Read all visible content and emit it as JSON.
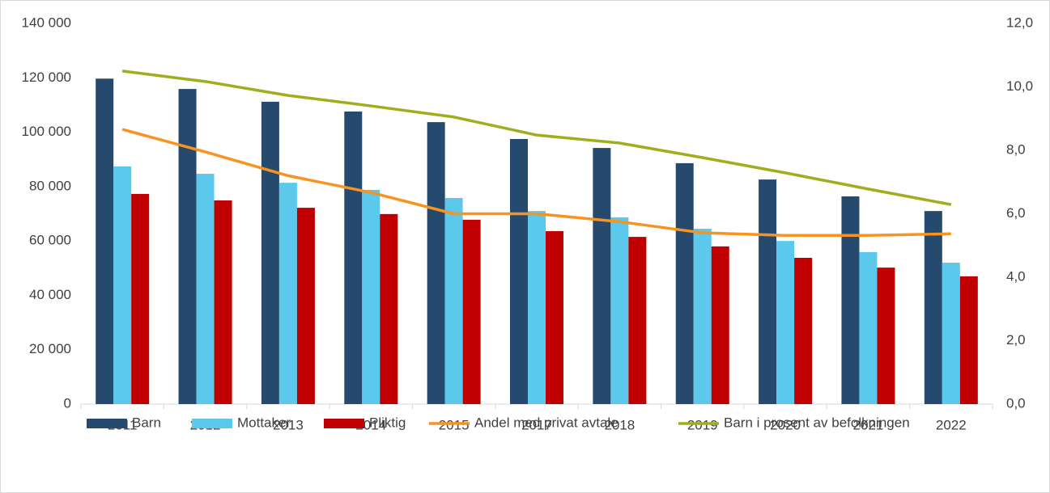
{
  "chart_data": {
    "type": "bar_line",
    "categories": [
      "2011",
      "2012",
      "2013",
      "2014",
      "2015",
      "2017",
      "2018",
      "2019",
      "2020",
      "2021",
      "2022"
    ],
    "series": [
      {
        "name": "Barn",
        "type": "bar",
        "color": "#264a6e",
        "values": [
          119700,
          115900,
          111200,
          107600,
          103700,
          97500,
          94200,
          88600,
          82600,
          76400,
          71000
        ]
      },
      {
        "name": "Mottaker",
        "type": "bar",
        "color": "#5bc8ec",
        "values": [
          87400,
          84700,
          81400,
          78800,
          75800,
          71000,
          68700,
          64500,
          60000,
          55900,
          52000
        ]
      },
      {
        "name": "Pliktig",
        "type": "bar",
        "color": "#c00000",
        "values": [
          77300,
          74900,
          72200,
          69900,
          67800,
          63600,
          61500,
          58000,
          53800,
          50200,
          47000
        ]
      },
      {
        "name": "Andel med privat avtale",
        "type": "line",
        "axis": "y2",
        "color": "#f7931e",
        "values": [
          8.66,
          7.95,
          7.2,
          6.67,
          6.0,
          6.0,
          5.75,
          5.4,
          5.32,
          5.32,
          5.37
        ]
      },
      {
        "name": "Barn i prosent av befolkningen",
        "type": "line",
        "axis": "y2",
        "color": "#a0ae1e",
        "values": [
          10.5,
          10.17,
          9.73,
          9.4,
          9.05,
          8.48,
          8.23,
          7.77,
          7.29,
          6.78,
          6.29
        ]
      }
    ],
    "ylim": [
      0,
      140000
    ],
    "yticks": [
      0,
      {
        "value": 20000,
        "label": "20 000"
      },
      {
        "value": 40000,
        "label": "40 000"
      },
      {
        "value": 60000,
        "label": "60 000"
      },
      {
        "value": 80000,
        "label": "80 000"
      },
      {
        "value": 100000,
        "label": "100 000"
      },
      {
        "value": 120000,
        "label": "120 000"
      },
      {
        "value": 140000,
        "label": "140 000"
      }
    ],
    "y2lim": [
      0,
      12
    ],
    "y2ticks": [
      {
        "value": 0,
        "label": "0,0"
      },
      {
        "value": 2,
        "label": "2,0"
      },
      {
        "value": 4,
        "label": "4,0"
      },
      {
        "value": 6,
        "label": "6,0"
      },
      {
        "value": 8,
        "label": "8,0"
      },
      {
        "value": 10,
        "label": "10,0"
      },
      {
        "value": 12,
        "label": "12,0"
      }
    ],
    "grid": false,
    "legend": "bottom"
  }
}
